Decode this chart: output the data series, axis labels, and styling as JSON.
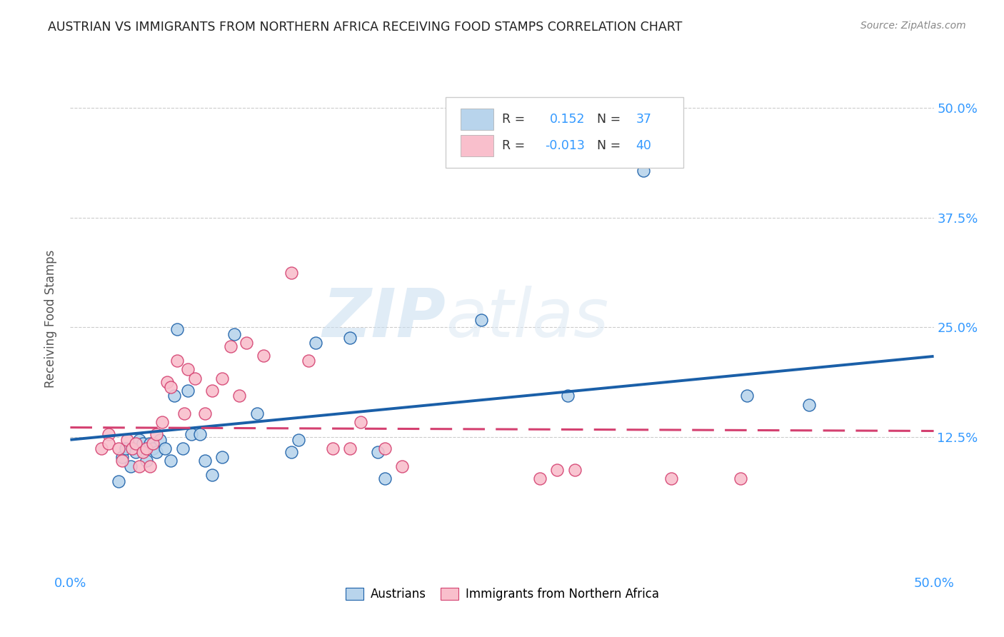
{
  "title": "AUSTRIAN VS IMMIGRANTS FROM NORTHERN AFRICA RECEIVING FOOD STAMPS CORRELATION CHART",
  "source": "Source: ZipAtlas.com",
  "ylabel": "Receiving Food Stamps",
  "xlim": [
    0.0,
    0.5
  ],
  "ylim": [
    -0.03,
    0.55
  ],
  "xticks": [
    0.0,
    0.1,
    0.2,
    0.3,
    0.4,
    0.5
  ],
  "xticklabels": [
    "0.0%",
    "",
    "",
    "",
    "",
    "50.0%"
  ],
  "yticks": [
    0.125,
    0.25,
    0.375,
    0.5
  ],
  "yticklabels": [
    "12.5%",
    "25.0%",
    "37.5%",
    "50.0%"
  ],
  "r_austrians": 0.152,
  "n_austrians": 37,
  "r_immigrants": -0.013,
  "n_immigrants": 40,
  "color_austrians": "#b8d4ec",
  "color_immigrants": "#f9bfcc",
  "line_color_austrians": "#1a5fa8",
  "line_color_immigrants": "#d44070",
  "watermark_zip": "ZIP",
  "watermark_atlas": "atlas",
  "austrians_x": [
    0.028,
    0.03,
    0.032,
    0.035,
    0.038,
    0.04,
    0.042,
    0.044,
    0.046,
    0.048,
    0.05,
    0.052,
    0.055,
    0.058,
    0.06,
    0.062,
    0.065,
    0.068,
    0.07,
    0.075,
    0.078,
    0.082,
    0.088,
    0.095,
    0.108,
    0.128,
    0.132,
    0.142,
    0.162,
    0.178,
    0.182,
    0.238,
    0.288,
    0.332,
    0.342,
    0.392,
    0.428
  ],
  "austrians_y": [
    0.075,
    0.102,
    0.112,
    0.092,
    0.108,
    0.122,
    0.118,
    0.098,
    0.118,
    0.112,
    0.108,
    0.122,
    0.112,
    0.098,
    0.172,
    0.248,
    0.112,
    0.178,
    0.128,
    0.128,
    0.098,
    0.082,
    0.102,
    0.242,
    0.152,
    0.108,
    0.122,
    0.232,
    0.238,
    0.108,
    0.078,
    0.258,
    0.172,
    0.428,
    0.458,
    0.172,
    0.162
  ],
  "immigrants_x": [
    0.018,
    0.022,
    0.022,
    0.028,
    0.03,
    0.033,
    0.036,
    0.038,
    0.04,
    0.042,
    0.044,
    0.046,
    0.048,
    0.05,
    0.053,
    0.056,
    0.058,
    0.062,
    0.066,
    0.068,
    0.072,
    0.078,
    0.082,
    0.088,
    0.093,
    0.098,
    0.102,
    0.112,
    0.128,
    0.138,
    0.152,
    0.162,
    0.168,
    0.182,
    0.192,
    0.272,
    0.282,
    0.292,
    0.348,
    0.388
  ],
  "immigrants_y": [
    0.112,
    0.128,
    0.118,
    0.112,
    0.098,
    0.122,
    0.112,
    0.118,
    0.092,
    0.108,
    0.112,
    0.092,
    0.118,
    0.128,
    0.142,
    0.188,
    0.182,
    0.212,
    0.152,
    0.202,
    0.192,
    0.152,
    0.178,
    0.192,
    0.228,
    0.172,
    0.232,
    0.218,
    0.312,
    0.212,
    0.112,
    0.112,
    0.142,
    0.112,
    0.092,
    0.078,
    0.088,
    0.088,
    0.078,
    0.078
  ]
}
